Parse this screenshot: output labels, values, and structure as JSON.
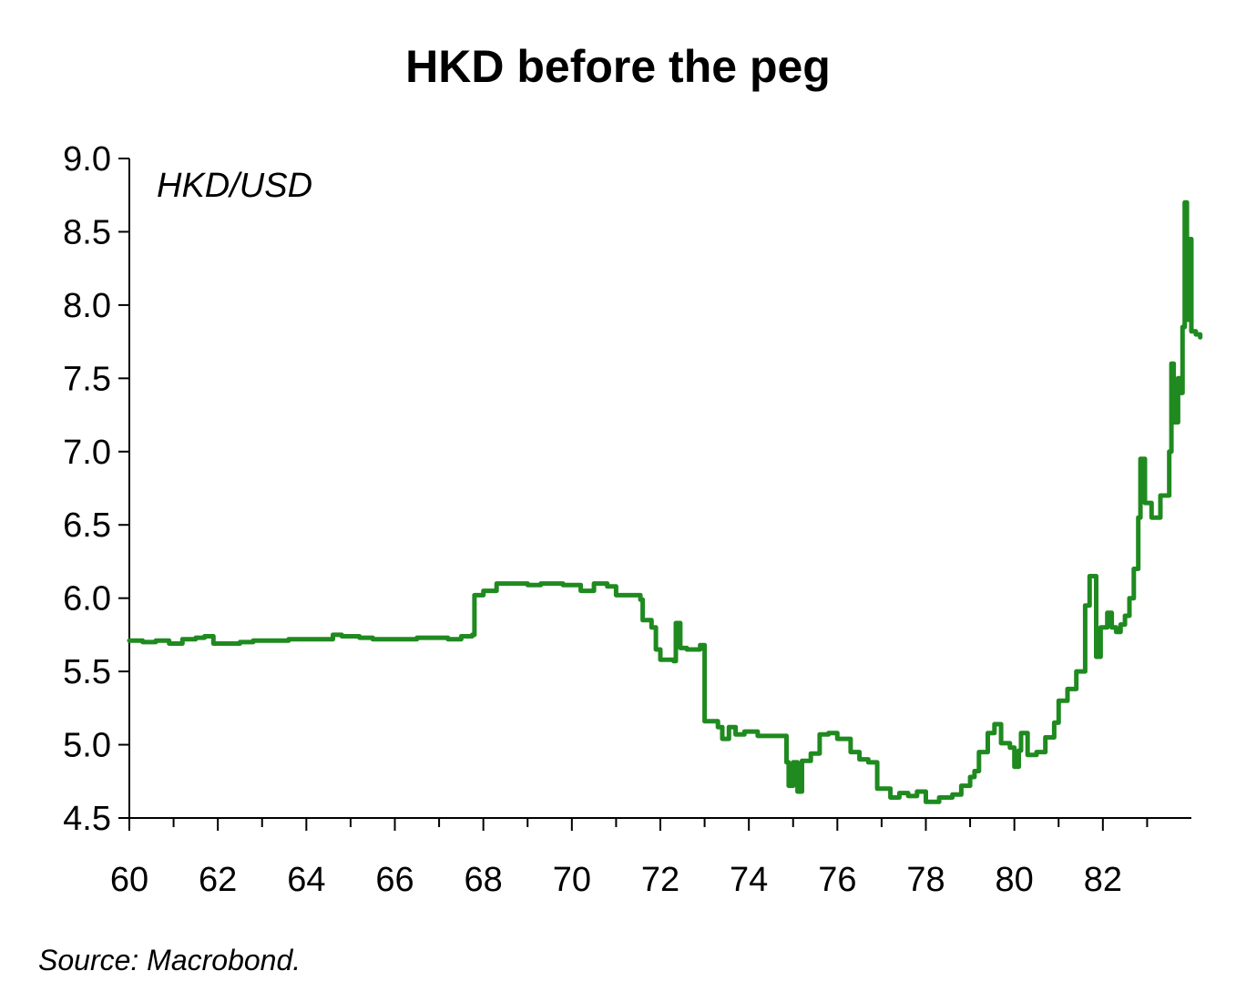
{
  "chart_data": {
    "type": "line",
    "title": "HKD before the peg",
    "unit_label": "HKD/USD",
    "source": "Source: Macrobond.",
    "xlabel": "",
    "ylabel": "",
    "xlim": [
      1960,
      1984
    ],
    "ylim": [
      4.5,
      9.0
    ],
    "y_ticks": [
      4.5,
      5.0,
      5.5,
      6.0,
      6.5,
      7.0,
      7.5,
      8.0,
      8.5,
      9.0
    ],
    "y_tick_labels": [
      "4.5",
      "5.0",
      "5.5",
      "6.0",
      "6.5",
      "7.0",
      "7.5",
      "8.0",
      "8.5",
      "9.0"
    ],
    "x_ticks": [
      1960,
      1962,
      1964,
      1966,
      1968,
      1970,
      1972,
      1974,
      1976,
      1978,
      1980,
      1982
    ],
    "x_tick_labels": [
      "60",
      "62",
      "64",
      "66",
      "68",
      "70",
      "72",
      "74",
      "76",
      "78",
      "80",
      "82"
    ],
    "x_minor_ticks": [
      1961,
      1963,
      1965,
      1967,
      1969,
      1971,
      1973,
      1975,
      1977,
      1979,
      1981,
      1983
    ],
    "grid": false,
    "legend": "none",
    "series": [
      {
        "color": "#1f8a1f",
        "points": [
          [
            1960.0,
            5.71
          ],
          [
            1960.3,
            5.7
          ],
          [
            1960.6,
            5.71
          ],
          [
            1960.9,
            5.69
          ],
          [
            1961.2,
            5.72
          ],
          [
            1961.5,
            5.73
          ],
          [
            1961.7,
            5.74
          ],
          [
            1961.9,
            5.69
          ],
          [
            1962.2,
            5.69
          ],
          [
            1962.5,
            5.7
          ],
          [
            1962.8,
            5.71
          ],
          [
            1963.2,
            5.71
          ],
          [
            1963.6,
            5.72
          ],
          [
            1964.0,
            5.72
          ],
          [
            1964.3,
            5.72
          ],
          [
            1964.6,
            5.75
          ],
          [
            1964.8,
            5.74
          ],
          [
            1965.2,
            5.73
          ],
          [
            1965.5,
            5.72
          ],
          [
            1965.8,
            5.72
          ],
          [
            1966.2,
            5.72
          ],
          [
            1966.5,
            5.73
          ],
          [
            1966.9,
            5.73
          ],
          [
            1967.2,
            5.72
          ],
          [
            1967.5,
            5.74
          ],
          [
            1967.75,
            5.75
          ],
          [
            1967.8,
            6.02
          ],
          [
            1968.0,
            6.05
          ],
          [
            1968.3,
            6.1
          ],
          [
            1968.6,
            6.1
          ],
          [
            1969.0,
            6.09
          ],
          [
            1969.3,
            6.1
          ],
          [
            1969.6,
            6.1
          ],
          [
            1969.8,
            6.09
          ],
          [
            1970.2,
            6.05
          ],
          [
            1970.5,
            6.1
          ],
          [
            1970.8,
            6.08
          ],
          [
            1971.0,
            6.02
          ],
          [
            1971.3,
            6.02
          ],
          [
            1971.55,
            5.99
          ],
          [
            1971.6,
            5.85
          ],
          [
            1971.8,
            5.8
          ],
          [
            1971.9,
            5.65
          ],
          [
            1972.0,
            5.58
          ],
          [
            1972.3,
            5.57
          ],
          [
            1972.35,
            5.83
          ],
          [
            1972.45,
            5.66
          ],
          [
            1972.6,
            5.65
          ],
          [
            1972.9,
            5.68
          ],
          [
            1973.0,
            5.16
          ],
          [
            1973.3,
            5.12
          ],
          [
            1973.4,
            5.04
          ],
          [
            1973.55,
            5.12
          ],
          [
            1973.7,
            5.07
          ],
          [
            1973.9,
            5.09
          ],
          [
            1974.2,
            5.06
          ],
          [
            1974.5,
            5.06
          ],
          [
            1974.75,
            5.06
          ],
          [
            1974.85,
            4.88
          ],
          [
            1974.9,
            4.72
          ],
          [
            1975.0,
            4.88
          ],
          [
            1975.1,
            4.68
          ],
          [
            1975.2,
            4.89
          ],
          [
            1975.4,
            4.94
          ],
          [
            1975.6,
            5.07
          ],
          [
            1975.8,
            5.08
          ],
          [
            1976.0,
            5.04
          ],
          [
            1976.3,
            4.95
          ],
          [
            1976.5,
            4.9
          ],
          [
            1976.7,
            4.88
          ],
          [
            1976.9,
            4.7
          ],
          [
            1977.2,
            4.64
          ],
          [
            1977.4,
            4.67
          ],
          [
            1977.6,
            4.65
          ],
          [
            1977.8,
            4.68
          ],
          [
            1978.0,
            4.61
          ],
          [
            1978.3,
            4.64
          ],
          [
            1978.6,
            4.66
          ],
          [
            1978.8,
            4.72
          ],
          [
            1979.0,
            4.78
          ],
          [
            1979.1,
            4.82
          ],
          [
            1979.2,
            4.95
          ],
          [
            1979.4,
            5.08
          ],
          [
            1979.55,
            5.14
          ],
          [
            1979.7,
            5.01
          ],
          [
            1979.9,
            4.98
          ],
          [
            1980.0,
            4.85
          ],
          [
            1980.1,
            4.96
          ],
          [
            1980.15,
            5.08
          ],
          [
            1980.3,
            4.93
          ],
          [
            1980.5,
            4.95
          ],
          [
            1980.7,
            5.05
          ],
          [
            1980.9,
            5.15
          ],
          [
            1981.0,
            5.3
          ],
          [
            1981.2,
            5.38
          ],
          [
            1981.4,
            5.5
          ],
          [
            1981.6,
            5.95
          ],
          [
            1981.7,
            6.15
          ],
          [
            1981.85,
            5.6
          ],
          [
            1981.95,
            5.8
          ],
          [
            1982.1,
            5.9
          ],
          [
            1982.2,
            5.8
          ],
          [
            1982.3,
            5.77
          ],
          [
            1982.4,
            5.82
          ],
          [
            1982.5,
            5.88
          ],
          [
            1982.6,
            6.0
          ],
          [
            1982.7,
            6.2
          ],
          [
            1982.8,
            6.55
          ],
          [
            1982.85,
            6.95
          ],
          [
            1982.95,
            6.65
          ],
          [
            1983.1,
            6.55
          ],
          [
            1983.3,
            6.7
          ],
          [
            1983.5,
            7.0
          ],
          [
            1983.55,
            7.6
          ],
          [
            1983.6,
            7.2
          ],
          [
            1983.7,
            7.5
          ],
          [
            1983.75,
            7.4
          ],
          [
            1983.8,
            7.85
          ],
          [
            1983.85,
            8.7
          ],
          [
            1983.9,
            7.9
          ],
          [
            1983.95,
            8.45
          ],
          [
            1984.0,
            7.82
          ],
          [
            1984.1,
            7.8
          ],
          [
            1984.2,
            7.78
          ]
        ]
      }
    ]
  }
}
